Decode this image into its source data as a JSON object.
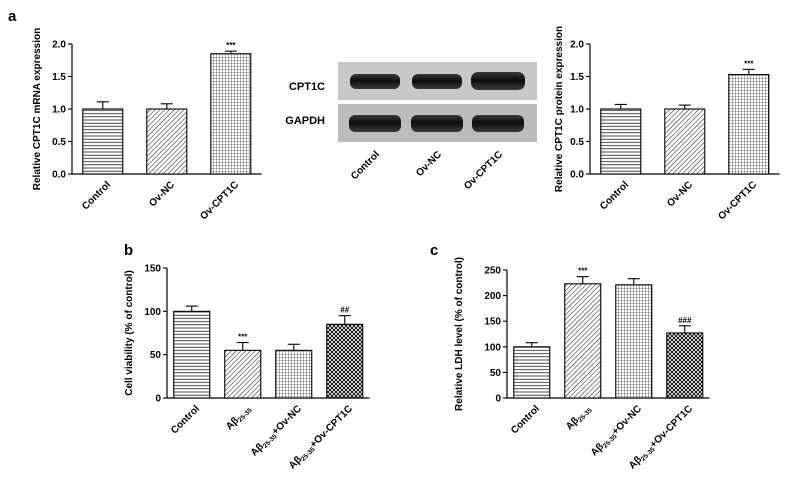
{
  "panels": {
    "a": "a",
    "b": "b",
    "c": "c"
  },
  "blot": {
    "rows": [
      "CPT1C",
      "GAPDH"
    ],
    "lanes": [
      "Control",
      "Ov-NC",
      "Ov-CPT1C"
    ]
  },
  "chart_data": [
    {
      "id": "a-mrna",
      "type": "bar",
      "ylabel": "Relative CPT1C mRNA expression",
      "ylim": [
        0,
        2.0
      ],
      "yticks": [
        "0.0",
        "0.5",
        "1.0",
        "1.5",
        "2.0"
      ],
      "categories": [
        {
          "parts": [
            {
              "t": "Control"
            }
          ]
        },
        {
          "parts": [
            {
              "t": "Ov-NC"
            }
          ]
        },
        {
          "parts": [
            {
              "t": "Ov-CPT1C"
            }
          ]
        }
      ],
      "values": [
        1.0,
        1.0,
        1.85
      ],
      "errors": [
        0.11,
        0.08,
        0.04
      ],
      "patterns": [
        "hlines",
        "diag",
        "grid"
      ],
      "annotations": [
        "",
        "",
        "***"
      ]
    },
    {
      "id": "a-protein",
      "type": "bar",
      "ylabel": "Relative CPT1C protein expression",
      "ylim": [
        0,
        2.0
      ],
      "yticks": [
        "0.0",
        "0.5",
        "1.0",
        "1.5",
        "2.0"
      ],
      "categories": [
        {
          "parts": [
            {
              "t": "Control"
            }
          ]
        },
        {
          "parts": [
            {
              "t": "Ov-NC"
            }
          ]
        },
        {
          "parts": [
            {
              "t": "Ov-CPT1C"
            }
          ]
        }
      ],
      "values": [
        1.0,
        1.0,
        1.53
      ],
      "errors": [
        0.07,
        0.06,
        0.08
      ],
      "patterns": [
        "hlines",
        "diag",
        "grid"
      ],
      "annotations": [
        "",
        "",
        "***"
      ]
    },
    {
      "id": "b-viability",
      "type": "bar",
      "ylabel": "Cell viability (% of control)",
      "ylim": [
        0,
        150
      ],
      "yticks": [
        "0",
        "50",
        "100",
        "150"
      ],
      "categories": [
        {
          "parts": [
            {
              "t": "Control"
            }
          ]
        },
        {
          "parts": [
            {
              "t": "Aβ"
            },
            {
              "t": "25-35",
              "sub": true
            }
          ]
        },
        {
          "parts": [
            {
              "t": "Aβ"
            },
            {
              "t": "25-35",
              "sub": true
            },
            {
              "t": "+Ov-NC"
            }
          ]
        },
        {
          "parts": [
            {
              "t": "Aβ"
            },
            {
              "t": "25-35",
              "sub": true
            },
            {
              "t": "+Ov-CPT1C"
            }
          ]
        }
      ],
      "values": [
        100,
        55,
        55,
        85
      ],
      "errors": [
        6,
        9,
        7,
        10
      ],
      "patterns": [
        "hlines",
        "diag",
        "grid",
        "cross"
      ],
      "annotations": [
        "",
        "***",
        "",
        "##"
      ]
    },
    {
      "id": "c-ldh",
      "type": "bar",
      "ylabel": "Relative LDH level (% of control)",
      "ylim": [
        0,
        250
      ],
      "yticks": [
        "0",
        "50",
        "100",
        "150",
        "200",
        "250"
      ],
      "categories": [
        {
          "parts": [
            {
              "t": "Control"
            }
          ]
        },
        {
          "parts": [
            {
              "t": "Aβ"
            },
            {
              "t": "25-35",
              "sub": true
            }
          ]
        },
        {
          "parts": [
            {
              "t": "Aβ"
            },
            {
              "t": "25-35",
              "sub": true
            },
            {
              "t": "+Ov-NC"
            }
          ]
        },
        {
          "parts": [
            {
              "t": "Aβ"
            },
            {
              "t": "25-35",
              "sub": true
            },
            {
              "t": "+Ov-CPT1C"
            }
          ]
        }
      ],
      "values": [
        100,
        223,
        221,
        127
      ],
      "errors": [
        8,
        14,
        12,
        14
      ],
      "patterns": [
        "hlines",
        "diag",
        "grid",
        "cross"
      ],
      "annotations": [
        "",
        "***",
        "",
        "###"
      ]
    }
  ]
}
